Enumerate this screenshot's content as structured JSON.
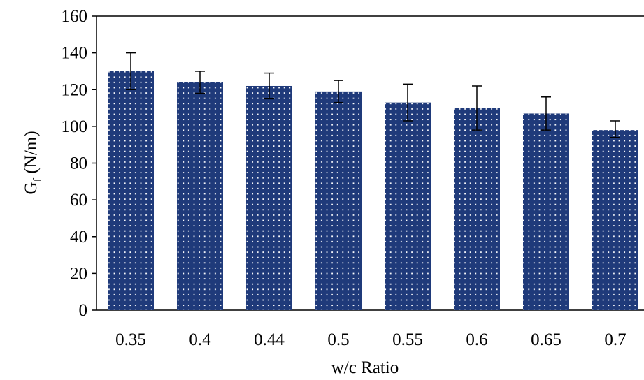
{
  "chart_data": {
    "type": "bar",
    "categories": [
      "0.35",
      "0.4",
      "0.44",
      "0.5",
      "0.55",
      "0.6",
      "0.65",
      "0.7"
    ],
    "values": [
      130,
      124,
      122,
      119,
      113,
      110,
      107,
      98
    ],
    "error_low": [
      120,
      118,
      115,
      113,
      103,
      98,
      98,
      94
    ],
    "error_high": [
      140,
      130,
      129,
      125,
      123,
      122,
      116,
      103
    ],
    "xlabel": "w/c Ratio",
    "ylabel_main": "G",
    "ylabel_sub": "f",
    "ylabel_unit": " (N/m)",
    "ylim": [
      0,
      160
    ],
    "yticks": [
      "0",
      "20",
      "40",
      "60",
      "80",
      "100",
      "120",
      "140",
      "160"
    ],
    "grid": false,
    "bar_color": "#1f3a7a",
    "dot_color": "#ffffff"
  }
}
